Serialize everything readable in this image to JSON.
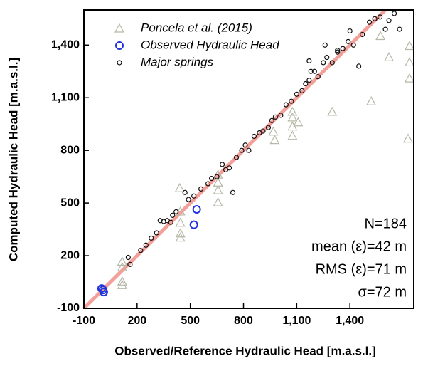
{
  "chart_data": {
    "type": "scatter",
    "xlabel": "Observed/Reference Hydraulic Head [m.a.s.l.]",
    "ylabel": "Computed Hydraulic Head [m.a.s.l.]",
    "xlim": [
      -100,
      1760
    ],
    "ylim": [
      -100,
      1600
    ],
    "xticks": [
      -100,
      200,
      500,
      800,
      {
        "value": 1100,
        "label": "1,100"
      },
      {
        "value": 1400,
        "label": "1,400"
      }
    ],
    "yticks": [
      -100,
      200,
      500,
      800,
      {
        "value": 1100,
        "label": "1,100"
      },
      {
        "value": 1400,
        "label": "1,400"
      }
    ],
    "annotations": [
      "N=184",
      "mean (ε)=42 m",
      "RMS (ε)=71 m",
      "σ=72 m"
    ],
    "legend": "upper left",
    "series": [
      {
        "name": "Poncela et al. (2015)",
        "color": "#b5b9a8",
        "marker": "triangle",
        "x": [
          116,
          116,
          116,
          116,
          440,
          444,
          444,
          444,
          444,
          656,
          656,
          656,
          656,
          1076,
          1076,
          1076,
          1076,
          1108,
          1300,
          1520,
          1620,
          1736,
          1736,
          1736,
          1728,
          1572,
          976,
          968
        ],
        "y": [
          166,
          134,
          53,
          33,
          585,
          452,
          388,
          327,
          303,
          662,
          617,
          573,
          504,
          1020,
          988,
          936,
          883,
          960,
          1020,
          1080,
          1331,
          1395,
          1302,
          1210,
          867,
          1452,
          859,
          907
        ]
      },
      {
        "name": "Observed Hydraulic Head",
        "color": "#2233dd",
        "marker": "circle-large",
        "x": [
          8,
          12,
          0,
          520,
          536
        ],
        "y": [
          5,
          -7,
          13,
          376,
          464
        ]
      },
      {
        "name": "Major springs",
        "color": "#111111",
        "marker": "circle",
        "x": [
          150,
          160,
          220,
          250,
          280,
          310,
          330,
          350,
          370,
          390,
          400,
          420,
          470,
          490,
          520,
          560,
          600,
          620,
          650,
          680,
          700,
          720,
          740,
          760,
          790,
          810,
          830,
          860,
          890,
          910,
          940,
          960,
          980,
          1010,
          1040,
          1070,
          1100,
          1130,
          1150,
          1170,
          1200,
          1220,
          1250,
          1270,
          1300,
          1330,
          1360,
          1390,
          1400,
          1420,
          1450,
          1470,
          1510,
          1540,
          1570,
          1600,
          1620,
          1650,
          1680,
          1330,
          1260,
          1170,
          1180
        ],
        "y": [
          190,
          150,
          230,
          260,
          300,
          330,
          400,
          395,
          400,
          390,
          430,
          450,
          560,
          520,
          540,
          580,
          610,
          640,
          650,
          720,
          690,
          700,
          560,
          760,
          800,
          830,
          800,
          880,
          900,
          910,
          930,
          970,
          990,
          1000,
          1060,
          1080,
          1120,
          1140,
          1180,
          1200,
          1250,
          1220,
          1300,
          1330,
          1300,
          1360,
          1380,
          1420,
          1480,
          1400,
          1280,
          1460,
          1530,
          1550,
          1560,
          1490,
          1540,
          1580,
          1490,
          1370,
          1400,
          1310,
          1250
        ]
      }
    ]
  }
}
